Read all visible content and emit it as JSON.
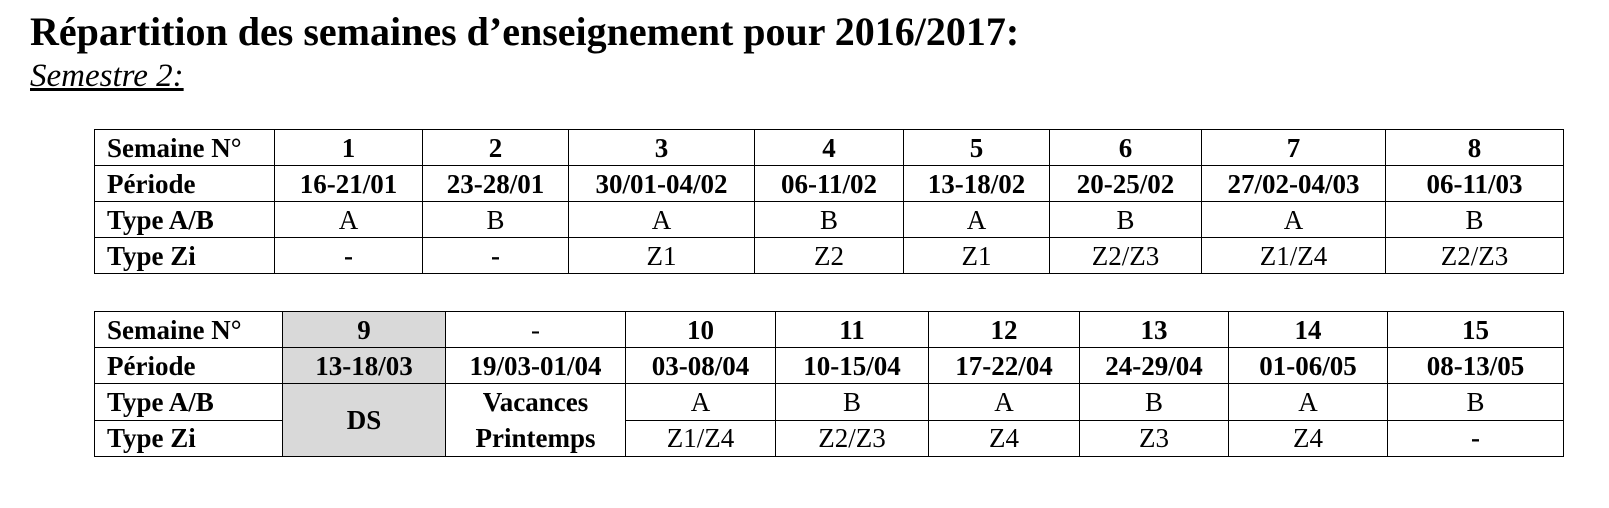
{
  "document": {
    "title": "Répartition des semaines d’enseignement pour 2016/2017:",
    "subtitle": "Semestre 2:"
  },
  "row_labels": {
    "semaine": "Semaine N°",
    "periode": "Période",
    "type_ab": "Type A/B",
    "type_zi": "Type Zi"
  },
  "table1": {
    "weeks": [
      {
        "num": "1",
        "periode": "16-21/01",
        "type_ab": "A",
        "type_zi": "-"
      },
      {
        "num": "2",
        "periode": "23-28/01",
        "type_ab": "B",
        "type_zi": "-"
      },
      {
        "num": "3",
        "periode": "30/01-04/02",
        "type_ab": "A",
        "type_zi": "Z1"
      },
      {
        "num": "4",
        "periode": "06-11/02",
        "type_ab": "B",
        "type_zi": "Z2"
      },
      {
        "num": "5",
        "periode": "13-18/02",
        "type_ab": "A",
        "type_zi": "Z1"
      },
      {
        "num": "6",
        "periode": "20-25/02",
        "type_ab": "B",
        "type_zi": "Z2/Z3"
      },
      {
        "num": "7",
        "periode": "27/02-04/03",
        "type_ab": "A",
        "type_zi": "Z1/Z4"
      },
      {
        "num": "8",
        "periode": "06-11/03",
        "type_ab": "B",
        "type_zi": "Z2/Z3"
      }
    ]
  },
  "table2": {
    "ds_week": {
      "num": "9",
      "periode": "13-18/03",
      "label": "DS"
    },
    "vacances_week": {
      "num": "-",
      "periode": "19/03-01/04",
      "label_line1": "Vacances",
      "label_line2": "Printemps"
    },
    "weeks": [
      {
        "num": "10",
        "periode": "03-08/04",
        "type_ab": "A",
        "type_zi": "Z1/Z4"
      },
      {
        "num": "11",
        "periode": "10-15/04",
        "type_ab": "B",
        "type_zi": "Z2/Z3"
      },
      {
        "num": "12",
        "periode": "17-22/04",
        "type_ab": "A",
        "type_zi": "Z4"
      },
      {
        "num": "13",
        "periode": "24-29/04",
        "type_ab": "B",
        "type_zi": "Z3"
      },
      {
        "num": "14",
        "periode": "01-06/05",
        "type_ab": "A",
        "type_zi": "Z4"
      },
      {
        "num": "15",
        "periode": "08-13/05",
        "type_ab": "B",
        "type_zi": "-"
      }
    ]
  },
  "colors": {
    "ds_shading": "#d9d9d9",
    "border": "#000000"
  }
}
